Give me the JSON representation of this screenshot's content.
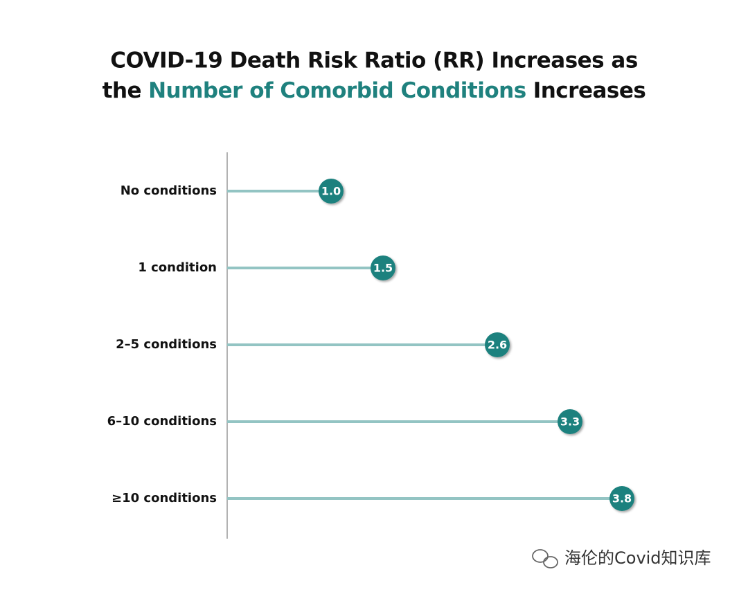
{
  "chart_data": {
    "type": "lollipop",
    "title": [
      "COVID-19 Death Risk Ratio (RR) Increases as",
      "the",
      "Number of Comorbid Conditions",
      "Increases"
    ],
    "title_highlight_color": "#1f817e",
    "categories": [
      "No conditions",
      "1 condition",
      "2–5 conditions",
      "6–10 conditions",
      "≥10 conditions"
    ],
    "values": [
      1.0,
      1.5,
      2.6,
      3.3,
      3.8
    ],
    "value_labels": [
      "1.0",
      "1.5",
      "2.6",
      "3.3",
      "3.8"
    ],
    "color": "#1f817e",
    "stem_color": "#93c4c3",
    "xlim": [
      0,
      4
    ]
  },
  "watermark": "海伦的Covid知识库"
}
